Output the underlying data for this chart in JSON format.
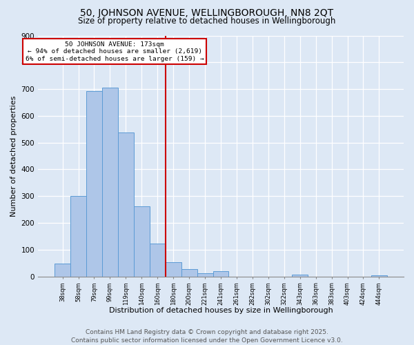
{
  "title": "50, JOHNSON AVENUE, WELLINGBOROUGH, NN8 2QT",
  "subtitle": "Size of property relative to detached houses in Wellingborough",
  "xlabel": "Distribution of detached houses by size in Wellingborough",
  "ylabel": "Number of detached properties",
  "categories": [
    "38sqm",
    "58sqm",
    "79sqm",
    "99sqm",
    "119sqm",
    "140sqm",
    "160sqm",
    "180sqm",
    "200sqm",
    "221sqm",
    "241sqm",
    "261sqm",
    "282sqm",
    "302sqm",
    "322sqm",
    "343sqm",
    "363sqm",
    "383sqm",
    "403sqm",
    "424sqm",
    "444sqm"
  ],
  "values": [
    47,
    300,
    693,
    706,
    537,
    263,
    122,
    53,
    28,
    13,
    19,
    0,
    0,
    0,
    0,
    7,
    0,
    0,
    0,
    0,
    3
  ],
  "bar_color": "#aec6e8",
  "bar_edge_color": "#5b9bd5",
  "vline_index": 7,
  "vline_color": "#cc0000",
  "annotation_title": "50 JOHNSON AVENUE: 173sqm",
  "annotation_line1": "← 94% of detached houses are smaller (2,619)",
  "annotation_line2": "6% of semi-detached houses are larger (159) →",
  "annotation_box_color": "#cc0000",
  "ylim": [
    0,
    900
  ],
  "yticks": [
    0,
    100,
    200,
    300,
    400,
    500,
    600,
    700,
    800,
    900
  ],
  "background_color": "#dde8f5",
  "plot_background": "#dde8f5",
  "footer_line1": "Contains HM Land Registry data © Crown copyright and database right 2025.",
  "footer_line2": "Contains public sector information licensed under the Open Government Licence v3.0.",
  "title_fontsize": 10,
  "subtitle_fontsize": 8.5,
  "footer_fontsize": 6.5,
  "ylabel_fontsize": 8,
  "xlabel_fontsize": 8
}
